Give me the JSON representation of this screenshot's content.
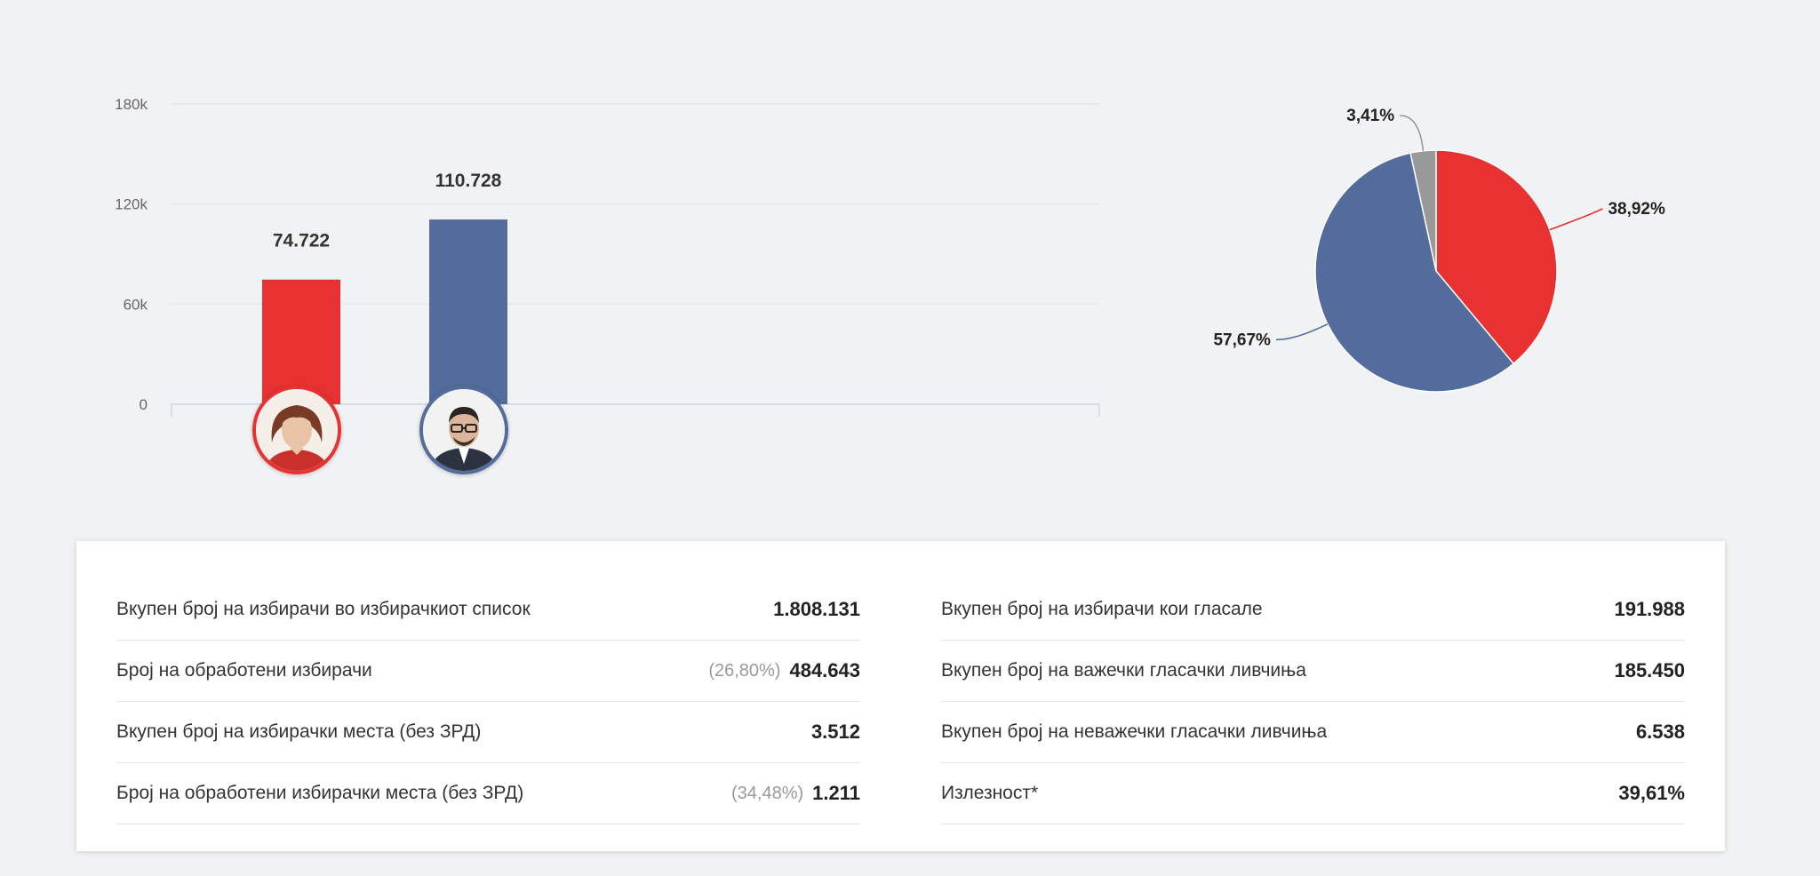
{
  "chart_data": [
    {
      "type": "bar",
      "categories": [
        "",
        ""
      ],
      "values": [
        74722,
        110728
      ],
      "value_labels": [
        "74.722",
        "110.728"
      ],
      "colors": [
        "#e83232",
        "#536c9c"
      ],
      "yticks": [
        {
          "value": 0,
          "label": "0"
        },
        {
          "value": 60000,
          "label": "60k"
        },
        {
          "value": 120000,
          "label": "120k"
        },
        {
          "value": 180000,
          "label": "180k"
        }
      ],
      "ylim": [
        0,
        180000
      ],
      "grid": true,
      "title": "",
      "xlabel": "",
      "ylabel": ""
    },
    {
      "type": "pie",
      "slices": [
        {
          "value": 38.92,
          "label": "38,92%",
          "color": "#e83232"
        },
        {
          "value": 57.67,
          "label": "57,67%",
          "color": "#536c9c"
        },
        {
          "value": 3.41,
          "label": "3,41%",
          "color": "#999999"
        }
      ],
      "title": ""
    }
  ],
  "stats": {
    "left": [
      {
        "label": "Вкупен број на избирачи во избирачкиот список",
        "pct": "",
        "value": "1.808.131"
      },
      {
        "label": "Број на обработени избирачи",
        "pct": "(26,80%)",
        "value": "484.643"
      },
      {
        "label": "Вкупен број на избирачки места (без ЗРД)",
        "pct": "",
        "value": "3.512"
      },
      {
        "label": "Број на обработени избирачки места (без ЗРД)",
        "pct": "(34,48%)",
        "value": "1.211"
      }
    ],
    "right": [
      {
        "label": "Вкупен број на избирачи кои гласале",
        "pct": "",
        "value": "191.988"
      },
      {
        "label": "Вкупен број на важечки гласачки ливчиња",
        "pct": "",
        "value": "185.450"
      },
      {
        "label": "Вкупен број на неважечки гласачки ливчиња",
        "pct": "",
        "value": "6.538"
      },
      {
        "label": "Излезност*",
        "pct": "",
        "value": "39,61%"
      }
    ]
  }
}
